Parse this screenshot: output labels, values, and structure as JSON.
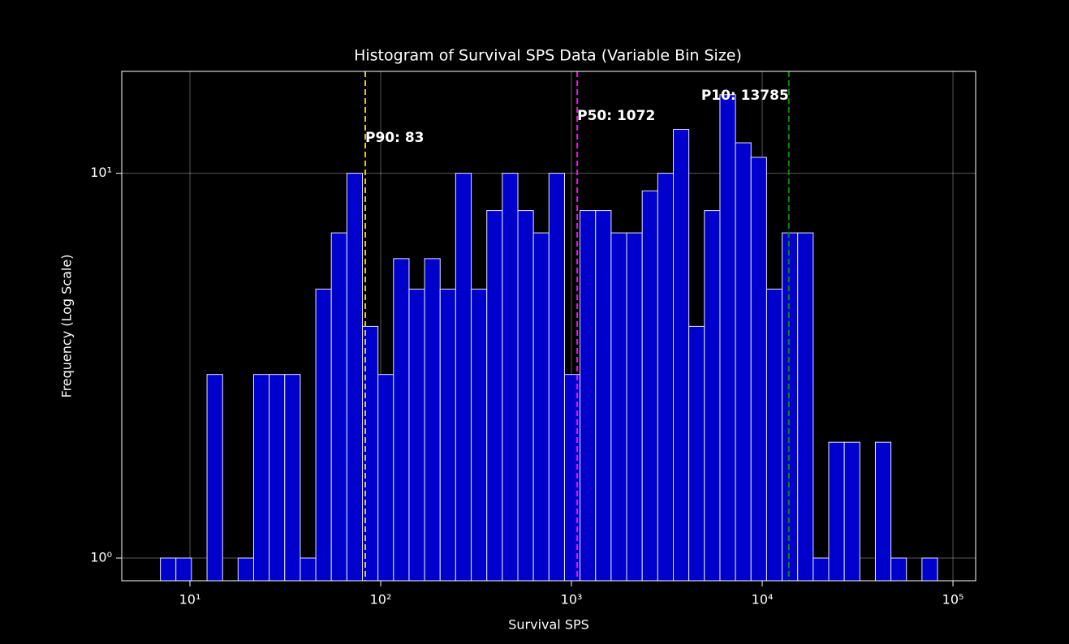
{
  "chart_data": {
    "type": "histogram",
    "title": "Histogram of Survival SPS Data (Variable Bin Size)",
    "x_label": "Survival SPS",
    "y_label": "Frequency (Log Scale)",
    "bins": [
      7.0,
      8.44,
      10.18,
      12.29,
      14.83,
      17.88,
      21.57,
      26.03,
      31.39,
      37.87,
      45.68,
      55.11,
      66.49,
      80.21,
      96.76,
      116.7,
      140.8,
      169.9,
      204.9,
      247.2,
      298.3,
      359.9,
      434.1,
      523.6,
      631.7,
      762.1,
      919.4,
      1109,
      1338,
      1614,
      1947,
      2349,
      2834,
      3419,
      4125,
      4976,
      6003,
      7242,
      8737,
      10540,
      12716,
      15340,
      18507,
      22324,
      26932,
      32492,
      39198,
      47290,
      57016,
      68786,
      82985
    ],
    "counts": [
      1,
      1,
      0,
      3,
      0,
      1,
      3,
      3,
      3,
      1,
      5,
      7,
      10,
      4,
      3,
      6,
      5,
      6,
      5,
      10,
      5,
      8,
      10,
      8,
      7,
      10,
      3,
      8,
      8,
      7,
      7,
      9,
      10,
      13,
      4,
      8,
      16,
      12,
      11,
      5,
      7,
      7,
      1,
      2,
      2,
      0,
      2,
      1,
      0,
      1
    ],
    "color": "#0000cd",
    "edgecolor": "#e6e6ff",
    "xscale": "log",
    "yscale": "log",
    "xlim": [
      4.39,
      131500
    ],
    "ylim": [
      0.873,
      18.4
    ],
    "xticks": [
      {
        "value": 10,
        "label": "10¹"
      },
      {
        "value": 100,
        "label": "10²"
      },
      {
        "value": 1000,
        "label": "10³"
      },
      {
        "value": 10000,
        "label": "10⁴"
      },
      {
        "value": 100000,
        "label": "10⁵"
      }
    ],
    "yticks": [
      {
        "value": 1,
        "label": "10⁰"
      },
      {
        "value": 10,
        "label": "10¹"
      }
    ],
    "grid": true,
    "vlines": [
      {
        "value": 83,
        "label": "P90: 83",
        "color": "#e6c619"
      },
      {
        "value": 1072,
        "label": "P50: 1072",
        "color": "#e619e6"
      },
      {
        "value": 13785,
        "label": "P10: 13785",
        "color": "#0a8a0a"
      }
    ]
  }
}
